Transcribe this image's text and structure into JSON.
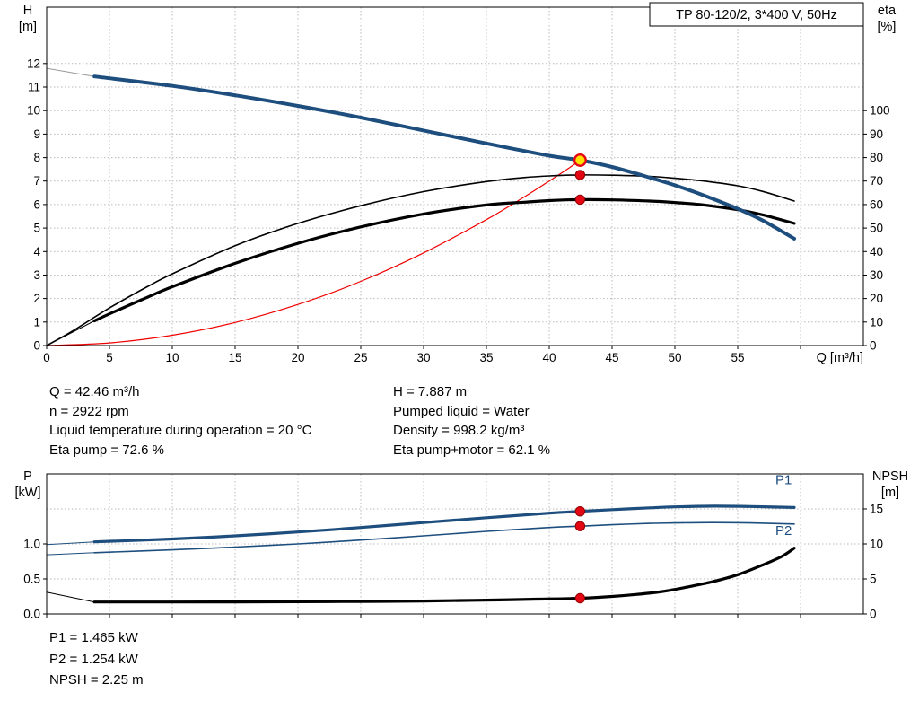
{
  "colors": {
    "blue": "#1d4e7e",
    "red": "#f00000",
    "grid": "#b9b9b9",
    "marker_red": "#e30613",
    "marker_yellow": "#ffe000"
  },
  "info_top": {
    "left": [
      "Q = 42.46 m³/h",
      "n = 2922 rpm",
      "Liquid temperature during operation = 20 °C",
      "Eta pump = 72.6 %"
    ],
    "right": [
      "H = 7.887 m",
      "Pumped liquid = Water",
      "Density = 998.2 kg/m³",
      "Eta pump+motor = 62.1 %"
    ]
  },
  "info_bottom": [
    "P1 = 1.465 kW",
    "P2 = 1.254 kW",
    "NPSH = 2.25 m"
  ],
  "chart_data": [
    {
      "type": "line",
      "title_box": "TP 80-120/2, 3*400 V, 50Hz",
      "x_axis": {
        "min": 0,
        "max": 65,
        "title": "Q [m³/h]",
        "ticks": [
          0,
          5,
          10,
          15,
          20,
          25,
          30,
          35,
          40,
          45,
          50,
          55,
          60
        ],
        "tick_labels": [
          "0",
          "5",
          "10",
          "15",
          "20",
          "25",
          "30",
          "35",
          "40",
          "45",
          "50",
          "55"
        ],
        "grid": [
          5,
          10,
          15,
          20,
          25,
          30,
          35,
          40,
          45,
          50,
          55,
          60
        ]
      },
      "left_axis": {
        "title": [
          "H",
          "[m]"
        ],
        "min": 0,
        "max": 14.4,
        "ticks": [
          0,
          1,
          2,
          3,
          4,
          5,
          6,
          7,
          8,
          9,
          10,
          11,
          12
        ],
        "tick_labels": [
          "0",
          "1",
          "2",
          "3",
          "4",
          "5",
          "6",
          "7",
          "8",
          "9",
          "10",
          "11",
          "12"
        ],
        "grid": [
          1,
          2,
          3,
          4,
          5,
          6,
          7,
          8,
          9,
          10,
          11,
          12
        ]
      },
      "right_axis": {
        "title": [
          "eta",
          "[%]"
        ],
        "min": 0,
        "max": 144,
        "ticks": [
          0,
          10,
          20,
          30,
          40,
          50,
          60,
          70,
          80,
          90,
          100
        ],
        "tick_labels": [
          "0",
          "10",
          "20",
          "30",
          "40",
          "50",
          "60",
          "70",
          "80",
          "90",
          "100"
        ]
      },
      "series": [
        {
          "name": "head-curve-extension",
          "axis": "left",
          "color": "#9a9a9a",
          "width": 1,
          "points": [
            [
              0,
              11.8
            ],
            [
              3.8,
              11.45
            ]
          ]
        },
        {
          "name": "system-curve",
          "axis": "left",
          "color": "#f00000",
          "width": 1.2,
          "points": [
            [
              0,
              0
            ],
            [
              5,
              0.11
            ],
            [
              10,
              0.44
            ],
            [
              15,
              0.98
            ],
            [
              20,
              1.75
            ],
            [
              25,
              2.73
            ],
            [
              30,
              3.94
            ],
            [
              35,
              5.36
            ],
            [
              38,
              6.32
            ],
            [
              40,
              7.0
            ],
            [
              41.5,
              7.53
            ],
            [
              42.46,
              7.887
            ]
          ]
        },
        {
          "name": "eta-pump-curve",
          "axis": "right",
          "color": "#000000",
          "width": 1.6,
          "points": [
            [
              0,
              0
            ],
            [
              2,
              6
            ],
            [
              5,
              16
            ],
            [
              8,
              25
            ],
            [
              10,
              30.5
            ],
            [
              15,
              42.5
            ],
            [
              20,
              52
            ],
            [
              25,
              59.5
            ],
            [
              30,
              65.5
            ],
            [
              35,
              69.8
            ],
            [
              38,
              71.5
            ],
            [
              40,
              72.2
            ],
            [
              42.46,
              72.6
            ],
            [
              45,
              72.5
            ],
            [
              48,
              72
            ],
            [
              50,
              71.2
            ],
            [
              52,
              70.2
            ],
            [
              55,
              68
            ],
            [
              57,
              65.6
            ],
            [
              59.5,
              61.5
            ]
          ]
        },
        {
          "name": "eta-pump-motor-extension",
          "axis": "right",
          "color": "#000000",
          "width": 1,
          "points": [
            [
              0,
              0
            ],
            [
              3.8,
              10.5
            ]
          ]
        },
        {
          "name": "eta-pump-motor-curve",
          "axis": "right",
          "color": "#000000",
          "width": 3.2,
          "points": [
            [
              3.8,
              10.5
            ],
            [
              5,
              13.5
            ],
            [
              8,
              20.5
            ],
            [
              10,
              25
            ],
            [
              15,
              35
            ],
            [
              20,
              43.5
            ],
            [
              25,
              50.5
            ],
            [
              30,
              56
            ],
            [
              35,
              59.8
            ],
            [
              38,
              61
            ],
            [
              40,
              61.7
            ],
            [
              42.46,
              62.1
            ],
            [
              45,
              62
            ],
            [
              48,
              61.5
            ],
            [
              50,
              60.9
            ],
            [
              52,
              60
            ],
            [
              55,
              57.8
            ],
            [
              57,
              55.6
            ],
            [
              59.5,
              52
            ]
          ]
        },
        {
          "name": "head-curve",
          "axis": "left",
          "color": "#1d4e7e",
          "width": 4,
          "points": [
            [
              3.8,
              11.45
            ],
            [
              10,
              11.05
            ],
            [
              15,
              10.65
            ],
            [
              20,
              10.2
            ],
            [
              25,
              9.7
            ],
            [
              30,
              9.15
            ],
            [
              35,
              8.6
            ],
            [
              40,
              8.08
            ],
            [
              42.46,
              7.887
            ],
            [
              45,
              7.6
            ],
            [
              48,
              7.15
            ],
            [
              50,
              6.82
            ],
            [
              52,
              6.45
            ],
            [
              55,
              5.82
            ],
            [
              57,
              5.32
            ],
            [
              59.5,
              4.55
            ]
          ]
        }
      ],
      "markers": [
        {
          "name": "eta-pump-point",
          "x": 42.46,
          "y": 72.6,
          "axis": "right",
          "style": "dot"
        },
        {
          "name": "eta-pump-motor-point",
          "x": 42.46,
          "y": 62.1,
          "axis": "right",
          "style": "dot"
        },
        {
          "name": "duty-point",
          "x": 42.46,
          "y": 7.887,
          "axis": "left",
          "style": "duty"
        }
      ],
      "labels": []
    },
    {
      "type": "line",
      "x_axis": {
        "min": 0,
        "max": 65,
        "title": "",
        "ticks": [
          0,
          5,
          10,
          15,
          20,
          25,
          30,
          35,
          40,
          45,
          50,
          55,
          60
        ],
        "tick_labels": [],
        "grid": [
          5,
          10,
          15,
          20,
          25,
          30,
          35,
          40,
          45,
          50,
          55,
          60
        ]
      },
      "left_axis": {
        "title": [
          "P",
          "[kW]"
        ],
        "min": 0,
        "max": 2,
        "ticks": [
          0,
          0.5,
          1
        ],
        "tick_labels": [
          "0.0",
          "0.5",
          "1.0"
        ],
        "grid": [
          0.5,
          1,
          1.5
        ]
      },
      "right_axis": {
        "title": [
          "NPSH",
          "[m]"
        ],
        "min": 0,
        "max": 20,
        "ticks": [
          0,
          5,
          10,
          15
        ],
        "tick_labels": [
          "0",
          "5",
          "10",
          "15"
        ]
      },
      "series": [
        {
          "name": "p1-extension",
          "axis": "left",
          "color": "#1d4e7e",
          "width": 1,
          "points": [
            [
              0,
              0.99
            ],
            [
              3.8,
              1.03
            ]
          ]
        },
        {
          "name": "p1-curve",
          "axis": "left",
          "color": "#1d4e7e",
          "width": 3.2,
          "points": [
            [
              3.8,
              1.03
            ],
            [
              10,
              1.07
            ],
            [
              15,
              1.115
            ],
            [
              20,
              1.17
            ],
            [
              25,
              1.235
            ],
            [
              30,
              1.305
            ],
            [
              35,
              1.375
            ],
            [
              40,
              1.44
            ],
            [
              42.46,
              1.465
            ],
            [
              45,
              1.49
            ],
            [
              48,
              1.515
            ],
            [
              50,
              1.53
            ],
            [
              53,
              1.54
            ],
            [
              56,
              1.535
            ],
            [
              59.5,
              1.52
            ]
          ]
        },
        {
          "name": "p2-extension",
          "axis": "left",
          "color": "#1d4e7e",
          "width": 1,
          "points": [
            [
              0,
              0.845
            ],
            [
              3.8,
              0.875
            ]
          ]
        },
        {
          "name": "p2-curve",
          "axis": "left",
          "color": "#1d4e7e",
          "width": 1.6,
          "points": [
            [
              3.8,
              0.875
            ],
            [
              10,
              0.915
            ],
            [
              15,
              0.955
            ],
            [
              20,
              1.0
            ],
            [
              25,
              1.055
            ],
            [
              30,
              1.115
            ],
            [
              35,
              1.18
            ],
            [
              40,
              1.235
            ],
            [
              42.46,
              1.254
            ],
            [
              45,
              1.275
            ],
            [
              48,
              1.293
            ],
            [
              50,
              1.3
            ],
            [
              53,
              1.305
            ],
            [
              56,
              1.3
            ],
            [
              59.5,
              1.285
            ]
          ]
        },
        {
          "name": "npsh-extension",
          "axis": "right",
          "color": "#000000",
          "width": 1,
          "points": [
            [
              0,
              3.1
            ],
            [
              3.8,
              1.7
            ]
          ]
        },
        {
          "name": "npsh-curve",
          "axis": "right",
          "color": "#000000",
          "width": 3.2,
          "points": [
            [
              3.8,
              1.7
            ],
            [
              10,
              1.7
            ],
            [
              15,
              1.72
            ],
            [
              20,
              1.75
            ],
            [
              25,
              1.78
            ],
            [
              30,
              1.85
            ],
            [
              33,
              1.92
            ],
            [
              36,
              2.0
            ],
            [
              39,
              2.12
            ],
            [
              42.46,
              2.25
            ],
            [
              45,
              2.5
            ],
            [
              47,
              2.8
            ],
            [
              49,
              3.2
            ],
            [
              51,
              3.85
            ],
            [
              53,
              4.6
            ],
            [
              55,
              5.6
            ],
            [
              57,
              7.0
            ],
            [
              58.5,
              8.2
            ],
            [
              59.5,
              9.4
            ]
          ]
        }
      ],
      "markers": [
        {
          "name": "p1-point",
          "x": 42.46,
          "y": 1.465,
          "axis": "left",
          "style": "dot"
        },
        {
          "name": "p2-point",
          "x": 42.46,
          "y": 1.254,
          "axis": "left",
          "style": "dot"
        },
        {
          "name": "npsh-point",
          "x": 42.46,
          "y": 2.25,
          "axis": "right",
          "style": "dot"
        }
      ],
      "labels": [
        {
          "text": "P1",
          "x": 58,
          "y": 1.85,
          "axis": "left",
          "color": "#1d4e7e"
        },
        {
          "text": "P2",
          "x": 58,
          "y": 1.13,
          "axis": "left",
          "color": "#1d4e7e"
        }
      ]
    }
  ]
}
